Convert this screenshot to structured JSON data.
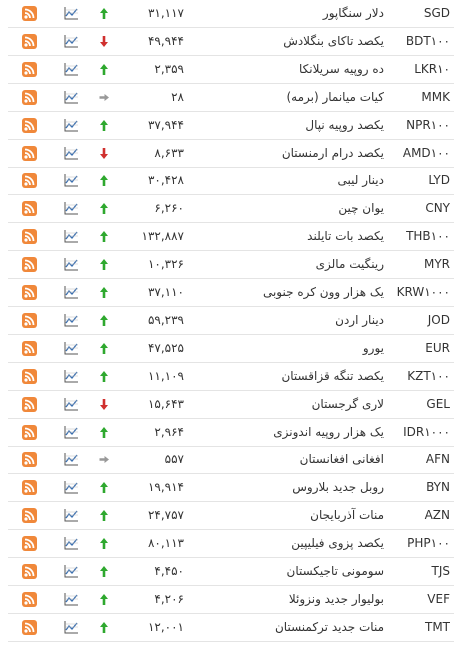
{
  "rows": [
    {
      "code": "SGD",
      "name": "دلار سنگاپور",
      "value": "۳۱,۱۱۷",
      "trend": "up"
    },
    {
      "code": "BDT۱۰۰",
      "name": "یکصد تاکای بنگلادش",
      "value": "۴۹,۹۴۴",
      "trend": "down"
    },
    {
      "code": "LKR۱۰",
      "name": "ده روپیه سریلانکا",
      "value": "۲,۳۵۹",
      "trend": "up"
    },
    {
      "code": "MMK",
      "name": "کیات میانمار (برمه)",
      "value": "۲۸",
      "trend": "flat"
    },
    {
      "code": "NPR۱۰۰",
      "name": "یکصد روپیه نپال",
      "value": "۳۷,۹۴۴",
      "trend": "up"
    },
    {
      "code": "AMD۱۰۰",
      "name": "یکصد درام ارمنستان",
      "value": "۸,۶۳۳",
      "trend": "down"
    },
    {
      "code": "LYD",
      "name": "دینار لیبی",
      "value": "۳۰,۴۲۸",
      "trend": "up"
    },
    {
      "code": "CNY",
      "name": "یوان چین",
      "value": "۶,۲۶۰",
      "trend": "up"
    },
    {
      "code": "THB۱۰۰",
      "name": "یکصد بات تایلند",
      "value": "۱۳۲,۸۸۷",
      "trend": "up"
    },
    {
      "code": "MYR",
      "name": "رینگیت مالزی",
      "value": "۱۰,۳۲۶",
      "trend": "up"
    },
    {
      "code": "KRW۱۰۰۰",
      "name": "یک هزار وون کره جنوبی",
      "value": "۳۷,۱۱۰",
      "trend": "up"
    },
    {
      "code": "JOD",
      "name": "دینار اردن",
      "value": "۵۹,۲۳۹",
      "trend": "up"
    },
    {
      "code": "EUR",
      "name": "یورو",
      "value": "۴۷,۵۲۵",
      "trend": "up"
    },
    {
      "code": "KZT۱۰۰",
      "name": "یکصد تنگه قزاقستان",
      "value": "۱۱,۱۰۹",
      "trend": "up"
    },
    {
      "code": "GEL",
      "name": "لاری گرجستان",
      "value": "۱۵,۶۴۳",
      "trend": "down"
    },
    {
      "code": "IDR۱۰۰۰",
      "name": "یک هزار روپیه اندونزی",
      "value": "۲,۹۶۴",
      "trend": "up"
    },
    {
      "code": "AFN",
      "name": "افغانی افغانستان",
      "value": "۵۵۷",
      "trend": "flat"
    },
    {
      "code": "BYN",
      "name": "روبل جدید بلاروس",
      "value": "۱۹,۹۱۴",
      "trend": "up"
    },
    {
      "code": "AZN",
      "name": "منات آذربایجان",
      "value": "۲۴,۷۵۷",
      "trend": "up"
    },
    {
      "code": "PHP۱۰۰",
      "name": "یکصد پزوی فیلیپین",
      "value": "۸۰,۱۱۳",
      "trend": "up"
    },
    {
      "code": "TJS",
      "name": "سومونی تاجیکستان",
      "value": "۴,۴۵۰",
      "trend": "up"
    },
    {
      "code": "VEF",
      "name": "بولیوار جدید ونزوئلا",
      "value": "۴,۲۰۶",
      "trend": "up"
    },
    {
      "code": "TMT",
      "name": "منات جدید ترکمنستان",
      "value": "۱۲,۰۰۱",
      "trend": "up"
    }
  ]
}
